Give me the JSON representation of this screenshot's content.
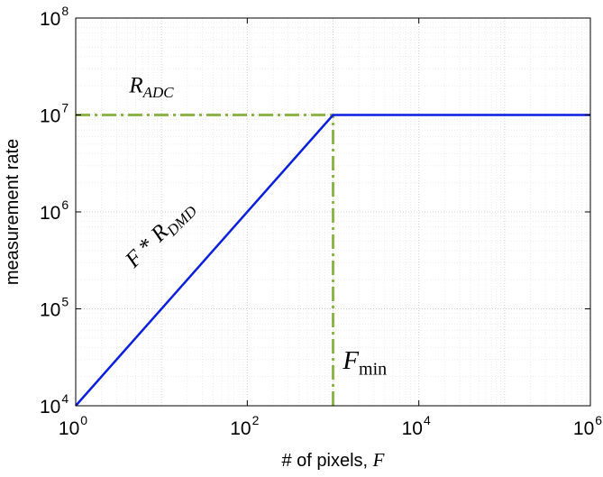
{
  "chart_data": {
    "type": "line",
    "title": "",
    "xlabel": "# of pixels,",
    "xlabel_symbol": "F",
    "ylabel": "measurement rate",
    "xscale": "log",
    "yscale": "log",
    "xlim": [
      1,
      1000000
    ],
    "ylim": [
      10000,
      100000000
    ],
    "grid": true,
    "legend": "none",
    "x_ticks": [
      {
        "value": 1,
        "base": "10",
        "exp": "0"
      },
      {
        "value": 100,
        "base": "10",
        "exp": "2"
      },
      {
        "value": 10000,
        "base": "10",
        "exp": "4"
      },
      {
        "value": 1000000,
        "base": "10",
        "exp": "6"
      }
    ],
    "y_ticks": [
      {
        "value": 10000,
        "base": "10",
        "exp": "4"
      },
      {
        "value": 100000,
        "base": "10",
        "exp": "5"
      },
      {
        "value": 1000000,
        "base": "10",
        "exp": "6"
      },
      {
        "value": 10000000,
        "base": "10",
        "exp": "7"
      },
      {
        "value": 100000000,
        "base": "10",
        "exp": "8"
      }
    ],
    "series": [
      {
        "style": "solid",
        "color": "#0a1fe0",
        "points": [
          [
            1,
            10000
          ],
          [
            1000,
            10000000
          ],
          [
            1000000,
            10000000
          ]
        ]
      }
    ],
    "reference_lines": [
      {
        "orientation": "horizontal",
        "y": 10000000,
        "x_from": 1,
        "x_to": 1000,
        "style": "dash-dot",
        "color": "#8db54a"
      },
      {
        "orientation": "vertical",
        "x": 1000,
        "y_from": 10000,
        "y_to": 10000000,
        "style": "dash-dot",
        "color": "#8db54a"
      }
    ],
    "annotations": [
      {
        "id": "radc",
        "main": "R",
        "sub": "ADC",
        "x": 4.2,
        "y": 17000000,
        "size": 25,
        "rotate": 0
      },
      {
        "id": "fdmd",
        "main": "F * R",
        "sub": "DMD",
        "x": 4.8,
        "y": 260000,
        "size": 25,
        "rotate": -45
      },
      {
        "id": "fmin",
        "main": "F",
        "sub": "min",
        "x": 1300,
        "y": 24000,
        "size": 29,
        "rotate": 0
      }
    ]
  }
}
